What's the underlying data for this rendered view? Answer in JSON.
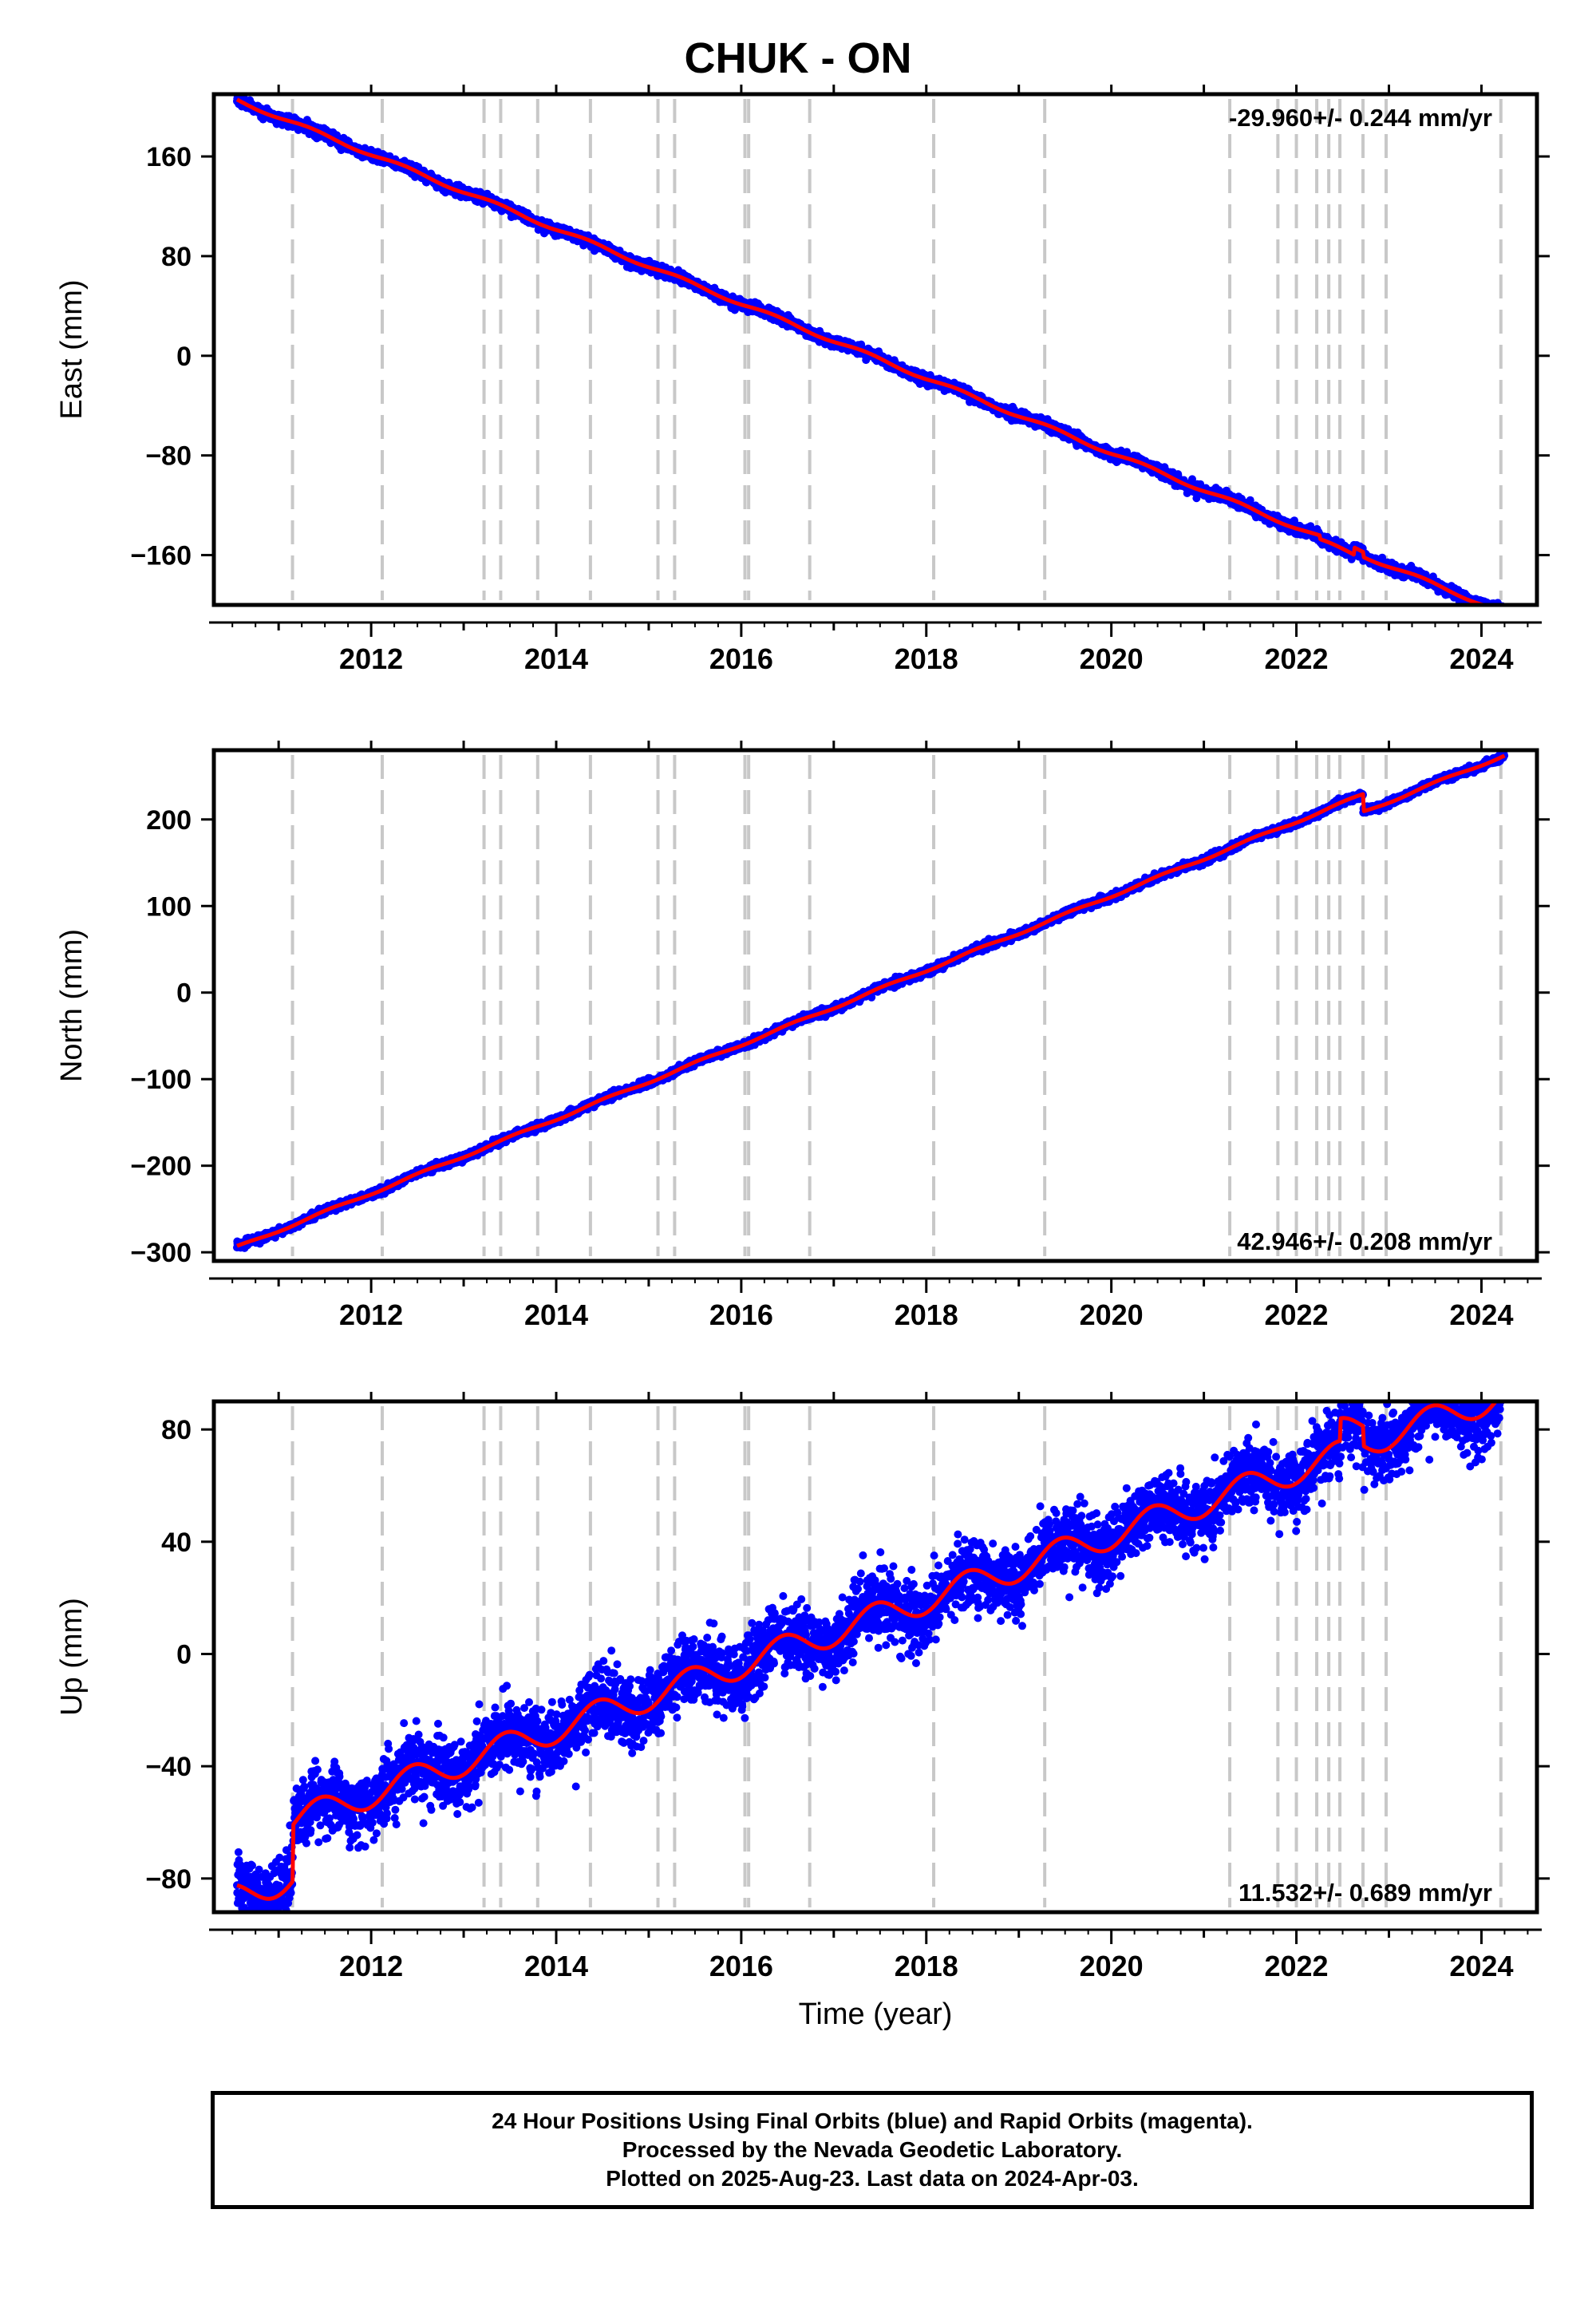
{
  "title": "CHUK - ON",
  "footer": {
    "line1": "24 Hour Positions Using Final Orbits (blue) and Rapid Orbits (magenta).",
    "line2": "Processed by the Nevada Geodetic Laboratory.",
    "line3": "Plotted on 2025-Aug-23. Last data on 2024-Apr-03."
  },
  "colors": {
    "final_orbits": "#0000ff",
    "rapid_orbits": "#ff00ff",
    "model_fit": "#ff0000",
    "event_lines": "#c8c8c8",
    "frame": "#000000"
  },
  "chart_data": [
    {
      "type": "scatter",
      "ylabel": "East (mm)",
      "xlabel": "",
      "xlim": [
        2010.3,
        2024.6
      ],
      "ylim": [
        -200,
        210
      ],
      "xticks": [
        2012,
        2014,
        2016,
        2018,
        2020,
        2022,
        2024
      ],
      "yticks": [
        160,
        80,
        0,
        -80,
        -160
      ],
      "grid": false,
      "rate_label": "-29.960+/- 0.244 mm/yr",
      "rate_position": "top-right",
      "start": 2010.55,
      "end": 2024.25,
      "model": {
        "reference_year": 2017.4,
        "offset_mm": 0,
        "trend_mm_per_yr": -29.96,
        "annual_amp_mm": 1.5,
        "annual_phase_yr": 0.1,
        "noise_sd_mm": 2.0,
        "steps": [
          {
            "year": 2022.25,
            "mm": -3
          },
          {
            "year": 2022.62,
            "mm": 6
          },
          {
            "year": 2022.72,
            "mm": -4
          }
        ]
      },
      "event_lines": [
        2011.15,
        2012.12,
        2013.22,
        2013.4,
        2013.8,
        2014.37,
        2015.1,
        2015.28,
        2016.04,
        2016.08,
        2016.74,
        2018.08,
        2019.28,
        2021.28,
        2021.8,
        2022.0,
        2022.22,
        2022.35,
        2022.47,
        2022.72,
        2022.97,
        2024.21
      ]
    },
    {
      "type": "scatter",
      "ylabel": "North (mm)",
      "xlabel": "",
      "xlim": [
        2010.3,
        2024.6
      ],
      "ylim": [
        -310,
        280
      ],
      "xticks": [
        2012,
        2014,
        2016,
        2018,
        2020,
        2022,
        2024
      ],
      "yticks": [
        200,
        100,
        0,
        -100,
        -200,
        -300
      ],
      "grid": false,
      "rate_label": "42.946+/- 0.208 mm/yr",
      "rate_position": "bottom-right",
      "start": 2010.55,
      "end": 2024.25,
      "model": {
        "reference_year": 2017.4,
        "offset_mm": 0,
        "trend_mm_per_yr": 42.946,
        "annual_amp_mm": 1.5,
        "annual_phase_yr": 0.3,
        "noise_sd_mm": 2.0,
        "steps": [
          {
            "year": 2022.72,
            "mm": -20
          }
        ]
      },
      "event_lines": [
        2011.15,
        2012.12,
        2013.22,
        2013.4,
        2013.8,
        2014.37,
        2015.1,
        2015.28,
        2016.04,
        2016.08,
        2016.74,
        2018.08,
        2019.28,
        2021.28,
        2021.8,
        2022.0,
        2022.22,
        2022.35,
        2022.47,
        2022.72,
        2022.97,
        2024.21
      ]
    },
    {
      "type": "scatter",
      "ylabel": "Up (mm)",
      "xlabel": "Time (year)",
      "xlim": [
        2010.3,
        2024.6
      ],
      "ylim": [
        -92,
        90
      ],
      "xticks": [
        2012,
        2014,
        2016,
        2018,
        2020,
        2022,
        2024
      ],
      "yticks": [
        80,
        40,
        0,
        -40,
        -80
      ],
      "grid": false,
      "rate_label": "11.532+/- 0.689 mm/yr",
      "rate_position": "bottom-right",
      "start": 2010.55,
      "end": 2024.25,
      "model": {
        "reference_year": 2017.4,
        "offset_mm": -7.5,
        "trend_mm_per_yr": 11.532,
        "annual_amp_mm": 5,
        "annual_phase_yr": 0.2,
        "noise_sd_mm": 6.0,
        "steps": [
          {
            "year": 2011.15,
            "mm": 20
          },
          {
            "year": 2022.47,
            "mm": 8
          },
          {
            "year": 2022.72,
            "mm": -7
          },
          {
            "year": 2024.21,
            "mm": 10
          }
        ]
      },
      "event_lines": [
        2011.15,
        2012.12,
        2013.22,
        2013.4,
        2013.8,
        2014.37,
        2015.1,
        2015.28,
        2016.04,
        2016.08,
        2016.74,
        2018.08,
        2019.28,
        2021.28,
        2021.8,
        2022.0,
        2022.22,
        2022.35,
        2022.47,
        2022.72,
        2022.97,
        2024.21
      ]
    }
  ]
}
